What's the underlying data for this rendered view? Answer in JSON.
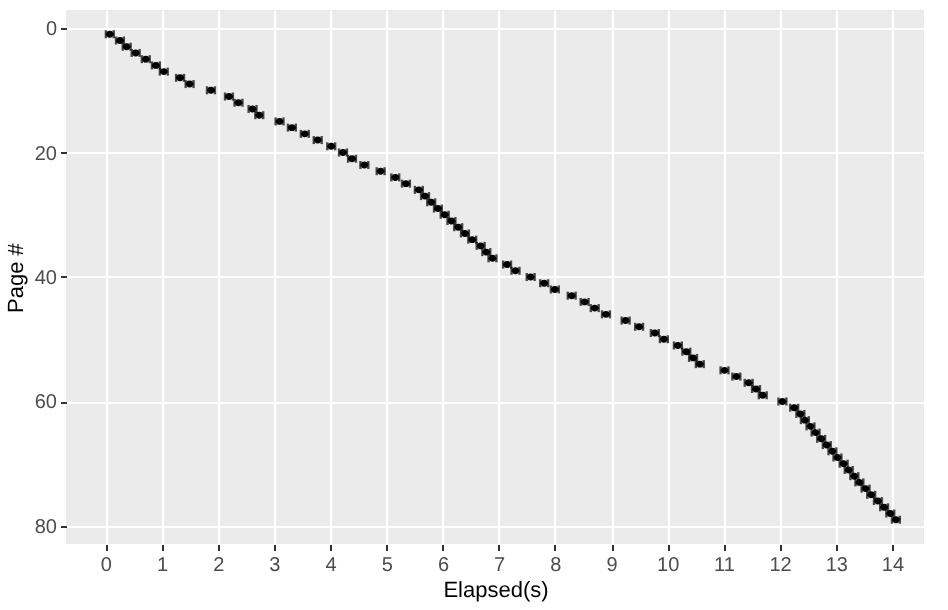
{
  "chart_data": {
    "type": "scatter",
    "xlabel": "Elapsed(s)",
    "ylabel": "Page #",
    "x": [
      0.08,
      0.26,
      0.38,
      0.54,
      0.72,
      0.9,
      1.04,
      1.33,
      1.5,
      1.88,
      2.2,
      2.37,
      2.62,
      2.74,
      3.1,
      3.32,
      3.55,
      3.78,
      4.02,
      4.23,
      4.39,
      4.61,
      4.9,
      5.16,
      5.35,
      5.58,
      5.69,
      5.8,
      5.92,
      6.04,
      6.16,
      6.28,
      6.4,
      6.53,
      6.68,
      6.78,
      6.89,
      7.15,
      7.3,
      7.57,
      7.81,
      8.0,
      8.3,
      8.53,
      8.71,
      8.91,
      9.26,
      9.5,
      9.78,
      9.94,
      10.19,
      10.34,
      10.46,
      10.58,
      11.02,
      11.23,
      11.45,
      11.58,
      11.7,
      12.05,
      12.26,
      12.37,
      12.45,
      12.55,
      12.64,
      12.74,
      12.84,
      12.94,
      13.03,
      13.14,
      13.23,
      13.33,
      13.42,
      13.53,
      13.63,
      13.75,
      13.86,
      13.97,
      14.07
    ],
    "values": [
      1,
      2,
      3,
      4,
      5,
      6,
      7,
      8,
      9,
      10,
      11,
      12,
      13,
      14,
      15,
      16,
      17,
      18,
      19,
      20,
      21,
      22,
      23,
      24,
      25,
      26,
      27,
      28,
      29,
      30,
      31,
      32,
      33,
      34,
      35,
      36,
      37,
      38,
      39,
      40,
      41,
      42,
      43,
      44,
      45,
      46,
      47,
      48,
      49,
      50,
      51,
      52,
      53,
      54,
      55,
      56,
      57,
      58,
      59,
      60,
      61,
      62,
      63,
      64,
      65,
      66,
      67,
      68,
      69,
      70,
      71,
      72,
      73,
      74,
      75,
      76,
      77,
      78,
      79
    ],
    "xerrors": [
      0.07,
      0.07,
      0.07,
      0.07,
      0.07,
      0.07,
      0.07,
      0.07,
      0.07,
      0.07,
      0.07,
      0.07,
      0.07,
      0.07,
      0.07,
      0.07,
      0.07,
      0.07,
      0.07,
      0.07,
      0.07,
      0.07,
      0.07,
      0.07,
      0.07,
      0.07,
      0.07,
      0.07,
      0.07,
      0.07,
      0.07,
      0.07,
      0.07,
      0.07,
      0.07,
      0.07,
      0.07,
      0.07,
      0.07,
      0.07,
      0.07,
      0.07,
      0.07,
      0.07,
      0.07,
      0.07,
      0.07,
      0.07,
      0.07,
      0.07,
      0.07,
      0.07,
      0.07,
      0.07,
      0.07,
      0.07,
      0.07,
      0.07,
      0.07,
      0.07,
      0.07,
      0.07,
      0.07,
      0.07,
      0.07,
      0.07,
      0.07,
      0.07,
      0.07,
      0.07,
      0.07,
      0.07,
      0.07,
      0.07,
      0.07,
      0.07,
      0.07,
      0.07,
      0.07
    ],
    "color": "#000000",
    "grid": true,
    "xlim": [
      -0.7,
      14.57
    ],
    "xticks": [
      0,
      1,
      2,
      3,
      4,
      5,
      6,
      7,
      8,
      9,
      10,
      11,
      12,
      13,
      14
    ],
    "ylim": [
      82.9,
      -2.9
    ],
    "yticks": [
      0,
      20,
      40,
      60,
      80
    ]
  }
}
